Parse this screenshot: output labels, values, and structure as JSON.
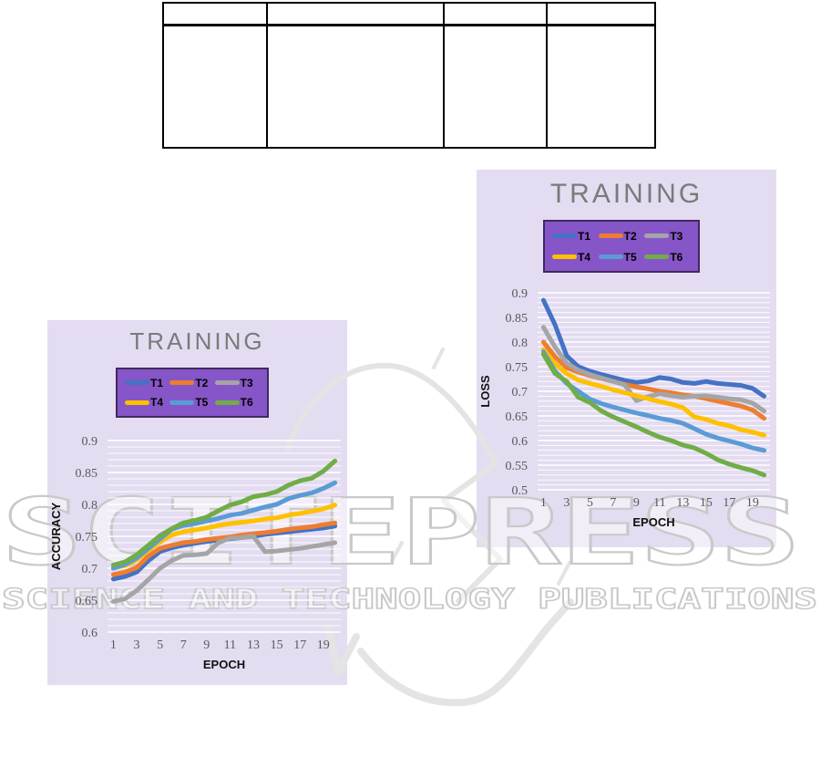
{
  "page": {
    "background": "#ffffff"
  },
  "table": {
    "columns": 4,
    "rows": 2,
    "header_cells": [
      "",
      "",
      "",
      ""
    ],
    "body_cells": [
      "",
      "",
      "",
      ""
    ]
  },
  "watermark": {
    "title": "SCITEPRESS",
    "subtitle": "SCIENCE AND TECHNOLOGY PUBLICATIONS",
    "color": "#c9c9c9"
  },
  "chart_data": [
    {
      "type": "line",
      "title": "TRAINING",
      "xlabel": "EPOCH",
      "ylabel": "ACCURACY",
      "ylim": [
        0.6,
        0.9
      ],
      "ytick_step": 0.05,
      "minor_step": 0.01,
      "grid": "horizontal-white",
      "legend_position": "top-inside",
      "background": "#e4dcf1",
      "legend_background": "#8655c8",
      "x": [
        1,
        2,
        3,
        4,
        5,
        6,
        7,
        8,
        9,
        10,
        11,
        12,
        13,
        14,
        15,
        16,
        17,
        18,
        19,
        20
      ],
      "xticks": [
        1,
        3,
        5,
        7,
        9,
        11,
        13,
        15,
        17,
        19
      ],
      "series": [
        {
          "name": "T1",
          "color": "#4472C4",
          "values": [
            0.683,
            0.687,
            0.694,
            0.712,
            0.726,
            0.732,
            0.736,
            0.739,
            0.742,
            0.744,
            0.746,
            0.748,
            0.75,
            0.753,
            0.755,
            0.757,
            0.759,
            0.761,
            0.763,
            0.766
          ]
        },
        {
          "name": "T2",
          "color": "#ED7D31",
          "values": [
            0.69,
            0.694,
            0.701,
            0.719,
            0.731,
            0.736,
            0.74,
            0.742,
            0.745,
            0.747,
            0.749,
            0.752,
            0.754,
            0.756,
            0.758,
            0.761,
            0.763,
            0.765,
            0.768,
            0.771
          ]
        },
        {
          "name": "T3",
          "color": "#A5A5A5",
          "values": [
            0.648,
            0.652,
            0.665,
            0.682,
            0.7,
            0.712,
            0.72,
            0.721,
            0.723,
            0.74,
            0.747,
            0.748,
            0.75,
            0.726,
            0.727,
            0.729,
            0.731,
            0.734,
            0.737,
            0.74
          ]
        },
        {
          "name": "T4",
          "color": "#FFC000",
          "values": [
            0.701,
            0.704,
            0.713,
            0.728,
            0.741,
            0.752,
            0.757,
            0.76,
            0.763,
            0.767,
            0.77,
            0.772,
            0.774,
            0.777,
            0.779,
            0.783,
            0.786,
            0.789,
            0.793,
            0.799
          ]
        },
        {
          "name": "T5",
          "color": "#5B9BD5",
          "values": [
            0.7,
            0.706,
            0.716,
            0.731,
            0.746,
            0.761,
            0.767,
            0.77,
            0.774,
            0.778,
            0.783,
            0.786,
            0.791,
            0.796,
            0.8,
            0.809,
            0.814,
            0.818,
            0.825,
            0.834
          ]
        },
        {
          "name": "T6",
          "color": "#70AD47",
          "values": [
            0.705,
            0.71,
            0.721,
            0.736,
            0.751,
            0.762,
            0.771,
            0.775,
            0.78,
            0.79,
            0.799,
            0.804,
            0.812,
            0.815,
            0.82,
            0.83,
            0.837,
            0.841,
            0.852,
            0.868
          ]
        }
      ]
    },
    {
      "type": "line",
      "title": "TRAINING",
      "xlabel": "EPOCH",
      "ylabel": "LOSS",
      "ylim": [
        0.5,
        0.9
      ],
      "ytick_step": 0.05,
      "minor_step": 0.01,
      "grid": "horizontal-white",
      "legend_position": "top-inside",
      "background": "#e4dcf1",
      "legend_background": "#8655c8",
      "x": [
        1,
        2,
        3,
        4,
        5,
        6,
        7,
        8,
        9,
        10,
        11,
        12,
        13,
        14,
        15,
        16,
        17,
        18,
        19,
        20
      ],
      "xticks": [
        1,
        3,
        5,
        7,
        9,
        11,
        13,
        15,
        17,
        19
      ],
      "series": [
        {
          "name": "T1",
          "color": "#4472C4",
          "values": [
            0.885,
            0.835,
            0.772,
            0.75,
            0.741,
            0.734,
            0.728,
            0.722,
            0.718,
            0.721,
            0.728,
            0.725,
            0.718,
            0.716,
            0.72,
            0.716,
            0.714,
            0.712,
            0.706,
            0.69
          ]
        },
        {
          "name": "T2",
          "color": "#ED7D31",
          "values": [
            0.8,
            0.77,
            0.748,
            0.739,
            0.732,
            0.726,
            0.72,
            0.714,
            0.709,
            0.705,
            0.7,
            0.697,
            0.693,
            0.69,
            0.685,
            0.68,
            0.675,
            0.67,
            0.662,
            0.645
          ]
        },
        {
          "name": "T3",
          "color": "#A5A5A5",
          "values": [
            0.83,
            0.79,
            0.757,
            0.743,
            0.734,
            0.727,
            0.72,
            0.713,
            0.681,
            0.689,
            0.695,
            0.691,
            0.688,
            0.69,
            0.691,
            0.688,
            0.685,
            0.683,
            0.676,
            0.66
          ]
        },
        {
          "name": "T4",
          "color": "#FFC000",
          "values": [
            0.785,
            0.756,
            0.736,
            0.723,
            0.716,
            0.71,
            0.703,
            0.697,
            0.691,
            0.685,
            0.679,
            0.674,
            0.667,
            0.648,
            0.643,
            0.635,
            0.63,
            0.622,
            0.617,
            0.611
          ]
        },
        {
          "name": "T5",
          "color": "#5B9BD5",
          "values": [
            0.78,
            0.741,
            0.716,
            0.7,
            0.684,
            0.675,
            0.668,
            0.662,
            0.656,
            0.651,
            0.645,
            0.641,
            0.635,
            0.624,
            0.613,
            0.605,
            0.599,
            0.593,
            0.585,
            0.58
          ]
        },
        {
          "name": "T6",
          "color": "#70AD47",
          "values": [
            0.775,
            0.736,
            0.72,
            0.688,
            0.677,
            0.66,
            0.648,
            0.638,
            0.628,
            0.617,
            0.607,
            0.6,
            0.591,
            0.585,
            0.574,
            0.561,
            0.552,
            0.545,
            0.539,
            0.53
          ]
        }
      ]
    }
  ]
}
